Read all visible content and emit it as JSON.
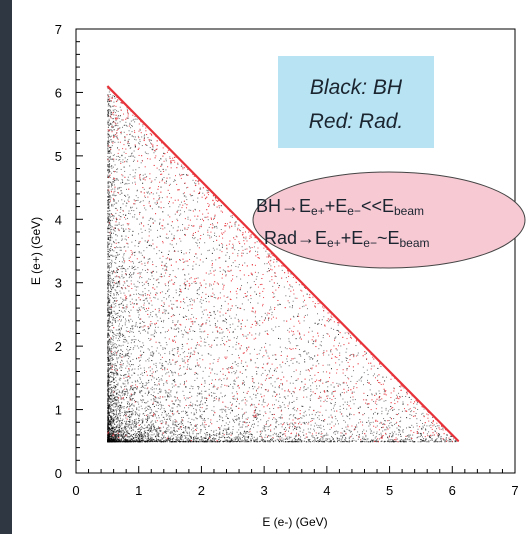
{
  "chart_data": {
    "type": "scatter",
    "title": "",
    "xlabel": "E (e-)  (GeV)",
    "ylabel": "E (e+)  (GeV)",
    "xlim": [
      0,
      7
    ],
    "ylim": [
      0,
      7
    ],
    "xticks": [
      "0",
      "1",
      "2",
      "3",
      "4",
      "5",
      "6",
      "7"
    ],
    "yticks": [
      "0",
      "1",
      "2",
      "3",
      "4",
      "5",
      "6",
      "7"
    ],
    "grid": false,
    "series": [
      {
        "name": "Black: BH",
        "color": "#000000",
        "region": "triangle",
        "vertices": [
          [
            0.5,
            0.5
          ],
          [
            6.1,
            0.5
          ],
          [
            0.5,
            6.1
          ]
        ],
        "concentration": "dense near (0.5, 0.5), falling off with E(e-)+E(e+)",
        "sum_max": 6.6
      },
      {
        "name": "Red: Rad.",
        "color": "#e8323a",
        "region": "triangle",
        "vertices": [
          [
            0.5,
            0.5
          ],
          [
            6.1,
            0.5
          ],
          [
            0.5,
            6.1
          ]
        ],
        "concentration": "dense band along E(e-)+E(e+) = 6.6, sparse inside",
        "diagonal_line": [
          [
            0.5,
            6.1
          ],
          [
            6.1,
            0.5
          ]
        ],
        "sum_max": 6.6
      }
    ],
    "legend": {
      "placement": "top-right",
      "line1": "Black:  BH",
      "line2": "Red:  Rad.",
      "background": "#b8e3f3"
    },
    "annotation": {
      "placement": "right",
      "background": "#f6c9d3",
      "line1": {
        "a": "BH",
        "b": "E",
        "b_sub": "e+",
        "c": "+E",
        "c_sub": "e−",
        "d": "<<E",
        "d_sub": "beam"
      },
      "line2": {
        "a": "Rad",
        "b": "E",
        "b_sub": "e+",
        "c": "+E",
        "c_sub": "e−",
        "d": "~E",
        "d_sub": "beam"
      },
      "arrow": "→"
    }
  }
}
